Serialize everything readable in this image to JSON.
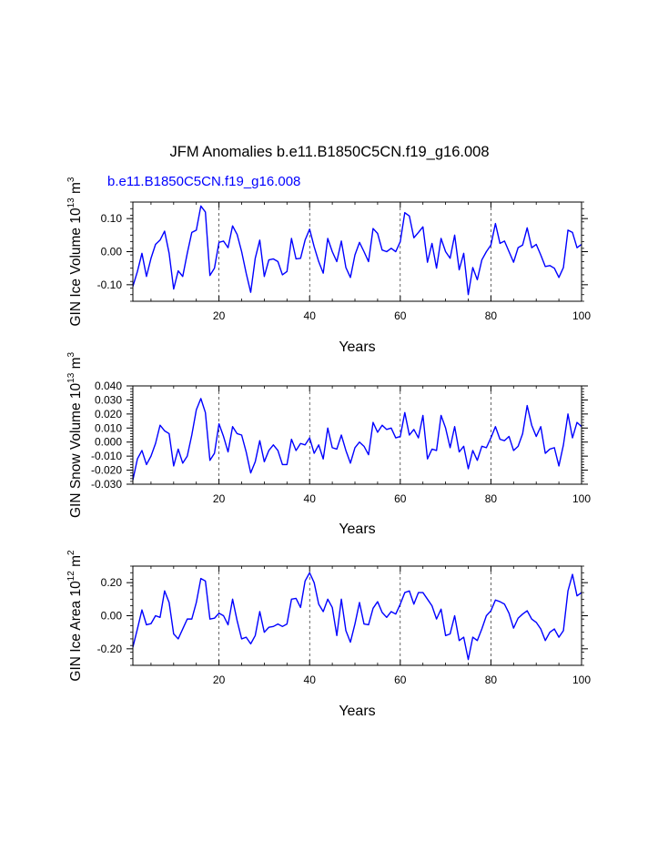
{
  "figure_title": "JFM Anomalies b.e11.B1850C5CN.f19_g16.008",
  "panel_subtitle": "b.e11.B1850C5CN.f19_g16.008",
  "line_color": "#0000ff",
  "chart_data": [
    {
      "type": "line",
      "name": "ice-volume",
      "ylabel_base": "GIN Ice Volume 10",
      "ylabel_exp": "13",
      "ylabel_unit": " m",
      "ylabel_unit_exp": "3",
      "xlabel": "Years",
      "xlim": [
        1,
        100
      ],
      "ylim": [
        -0.15,
        0.15
      ],
      "xticks": [
        20,
        40,
        60,
        80,
        100
      ],
      "xtick_labels": [
        "20",
        "40",
        "60",
        "80",
        "100"
      ],
      "yticks": [
        -0.1,
        0.0,
        0.1
      ],
      "ytick_labels": [
        "-0.10",
        "0.00",
        "0.10"
      ],
      "y_minor_step": 0.02,
      "values": [
        -0.105,
        -0.06,
        -0.005,
        -0.075,
        -0.02,
        0.022,
        0.035,
        0.062,
        -0.005,
        -0.113,
        -0.058,
        -0.075,
        -0.005,
        0.058,
        0.065,
        0.138,
        0.12,
        -0.072,
        -0.05,
        0.028,
        0.032,
        0.012,
        0.078,
        0.052,
        0.0,
        -0.065,
        -0.123,
        -0.02,
        0.035,
        -0.075,
        -0.025,
        -0.022,
        -0.03,
        -0.07,
        -0.06,
        0.04,
        -0.022,
        -0.02,
        0.035,
        0.068,
        0.015,
        -0.03,
        -0.065,
        0.04,
        0.0,
        -0.03,
        0.032,
        -0.048,
        -0.078,
        -0.01,
        0.028,
        0.0,
        -0.03,
        0.07,
        0.055,
        0.005,
        0.0,
        0.01,
        0.0,
        0.03,
        0.118,
        0.108,
        0.042,
        0.058,
        0.075,
        -0.032,
        0.025,
        -0.05,
        0.04,
        0.0,
        -0.02,
        0.05,
        -0.055,
        -0.005,
        -0.13,
        -0.048,
        -0.085,
        -0.025,
        0.0,
        0.02,
        0.085,
        0.025,
        0.032,
        0.0,
        -0.032,
        0.012,
        0.02,
        0.072,
        0.012,
        0.022,
        -0.01,
        -0.045,
        -0.042,
        -0.05,
        -0.078,
        -0.048,
        0.065,
        0.058,
        0.012,
        0.022
      ]
    },
    {
      "type": "line",
      "name": "snow-volume",
      "ylabel_base": "GIN Snow Volume 10",
      "ylabel_exp": "13",
      "ylabel_unit": " m",
      "ylabel_unit_exp": "3",
      "xlabel": "Years",
      "xlim": [
        1,
        100
      ],
      "ylim": [
        -0.03,
        0.04
      ],
      "xticks": [
        20,
        40,
        60,
        80,
        100
      ],
      "xtick_labels": [
        "20",
        "40",
        "60",
        "80",
        "100"
      ],
      "yticks": [
        -0.03,
        -0.02,
        -0.01,
        0.0,
        0.01,
        0.02,
        0.03,
        0.04
      ],
      "ytick_labels": [
        "-0.030",
        "-0.020",
        "-0.010",
        "0.000",
        "0.010",
        "0.020",
        "0.030",
        "0.040"
      ],
      "y_minor_step": 0.002,
      "values": [
        -0.027,
        -0.012,
        -0.006,
        -0.016,
        -0.01,
        -0.001,
        0.012,
        0.008,
        0.006,
        -0.017,
        -0.005,
        -0.015,
        -0.01,
        0.005,
        0.023,
        0.031,
        0.021,
        -0.013,
        -0.008,
        0.013,
        0.004,
        -0.007,
        0.011,
        0.006,
        0.005,
        -0.007,
        -0.022,
        -0.014,
        0.001,
        -0.014,
        -0.006,
        -0.002,
        -0.006,
        -0.016,
        -0.016,
        0.002,
        -0.006,
        -0.001,
        -0.002,
        0.003,
        -0.008,
        -0.002,
        -0.012,
        0.01,
        -0.004,
        -0.005,
        0.005,
        -0.006,
        -0.015,
        -0.004,
        0.0,
        -0.003,
        -0.009,
        0.014,
        0.007,
        0.012,
        0.009,
        0.01,
        0.003,
        0.004,
        0.021,
        0.005,
        0.009,
        0.003,
        0.019,
        -0.012,
        -0.005,
        -0.006,
        0.019,
        0.01,
        -0.004,
        0.011,
        -0.007,
        -0.003,
        -0.019,
        -0.006,
        -0.013,
        -0.003,
        -0.004,
        0.003,
        0.011,
        0.002,
        0.001,
        0.004,
        -0.006,
        -0.003,
        0.006,
        0.026,
        0.012,
        0.004,
        0.011,
        -0.008,
        -0.005,
        -0.004,
        -0.017,
        -0.002,
        0.02,
        0.003,
        0.014,
        0.011
      ]
    },
    {
      "type": "line",
      "name": "ice-area",
      "ylabel_base": "GIN Ice Area 10",
      "ylabel_exp": "12",
      "ylabel_unit": " m",
      "ylabel_unit_exp": "2",
      "xlabel": "Years",
      "xlim": [
        1,
        100
      ],
      "ylim": [
        -0.3,
        0.3
      ],
      "xticks": [
        20,
        40,
        60,
        80,
        100
      ],
      "xtick_labels": [
        "20",
        "40",
        "60",
        "80",
        "100"
      ],
      "yticks": [
        -0.2,
        0.0,
        0.2
      ],
      "ytick_labels": [
        "-0.20",
        "0.00",
        "0.20"
      ],
      "y_minor_step": 0.04,
      "values": [
        -0.19,
        -0.08,
        0.035,
        -0.055,
        -0.048,
        0.0,
        -0.01,
        0.15,
        0.08,
        -0.11,
        -0.14,
        -0.08,
        -0.02,
        -0.02,
        0.08,
        0.225,
        0.21,
        -0.02,
        -0.015,
        0.015,
        0.0,
        -0.055,
        0.1,
        -0.03,
        -0.14,
        -0.13,
        -0.17,
        -0.12,
        0.025,
        -0.1,
        -0.07,
        -0.065,
        -0.05,
        -0.065,
        -0.05,
        0.1,
        0.105,
        0.05,
        0.21,
        0.26,
        0.2,
        0.07,
        0.025,
        0.1,
        0.05,
        -0.12,
        0.1,
        -0.09,
        -0.16,
        -0.05,
        0.08,
        -0.05,
        -0.055,
        0.045,
        0.085,
        0.02,
        -0.01,
        0.025,
        0.01,
        0.07,
        0.14,
        0.15,
        0.07,
        0.14,
        0.14,
        0.1,
        0.06,
        -0.02,
        0.04,
        -0.12,
        -0.11,
        0.0,
        -0.15,
        -0.13,
        -0.265,
        -0.13,
        -0.15,
        -0.08,
        0.0,
        0.03,
        0.095,
        0.085,
        0.07,
        0.015,
        -0.075,
        -0.015,
        0.01,
        0.03,
        -0.02,
        -0.04,
        -0.08,
        -0.15,
        -0.1,
        -0.08,
        -0.13,
        -0.09,
        0.15,
        0.25,
        0.12,
        0.14
      ]
    }
  ]
}
